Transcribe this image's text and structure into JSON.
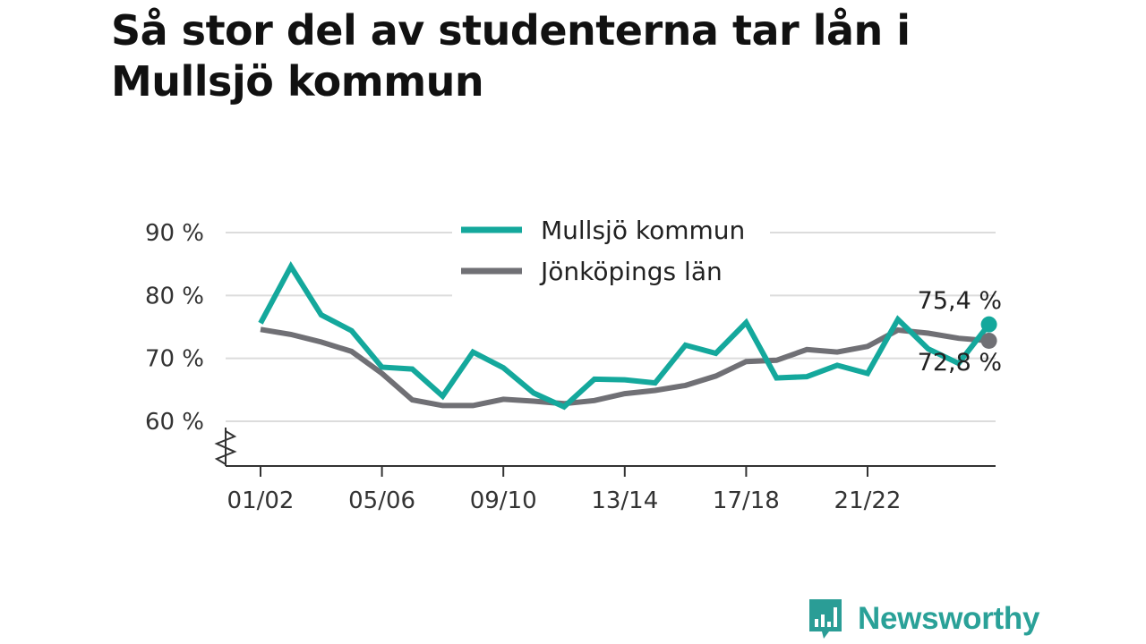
{
  "title": "Så stor del av studenterna tar lån i Mullsjö kommun",
  "brand": {
    "name": "Newsworthy",
    "color": "#2a9d96"
  },
  "chart_data": {
    "type": "line",
    "title": "Så stor del av studenterna tar lån i Mullsjö kommun",
    "xlabel": "",
    "ylabel": "",
    "x_tick_labels": [
      "01/02",
      "05/06",
      "09/10",
      "13/14",
      "17/18",
      "21/22"
    ],
    "x_tick_index": [
      0,
      4,
      8,
      12,
      16,
      20
    ],
    "y_ticks": [
      60,
      70,
      80,
      90
    ],
    "y_tick_labels": [
      "60 %",
      "70 %",
      "80 %",
      "90 %"
    ],
    "ylim": [
      53,
      92
    ],
    "grid": true,
    "legend": "top-center",
    "series": [
      {
        "name": "Mullsjö kommun",
        "color": "#14a89c",
        "values": [
          75.6,
          84.6,
          76.9,
          74.4,
          68.6,
          68.3,
          64.0,
          71.0,
          68.5,
          64.5,
          62.3,
          66.7,
          66.6,
          66.1,
          72.1,
          70.8,
          75.7,
          66.9,
          67.1,
          68.9,
          67.6,
          76.2,
          71.5,
          69.2,
          75.4
        ],
        "end_label": "75,4 %"
      },
      {
        "name": "Jönköpings län",
        "color": "#707075",
        "values": [
          74.6,
          73.8,
          72.6,
          71.1,
          67.6,
          63.4,
          62.5,
          62.5,
          63.5,
          63.2,
          62.8,
          63.3,
          64.4,
          64.9,
          65.7,
          67.2,
          69.5,
          69.7,
          71.4,
          71.0,
          71.9,
          74.5,
          74.0,
          73.2,
          72.8
        ],
        "end_label": "72,8 %"
      }
    ]
  }
}
